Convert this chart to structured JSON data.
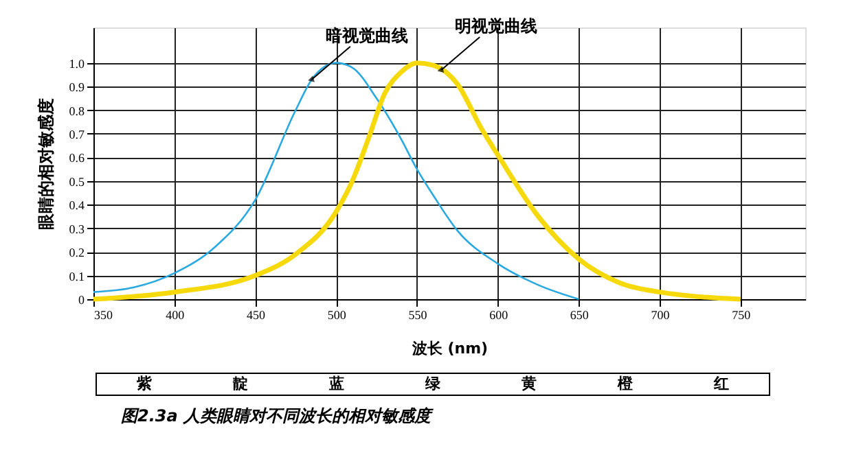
{
  "chart_data": {
    "type": "line",
    "xlabel": "波长 (nm)",
    "ylabel": "眼睛的相对敏感度",
    "xlim": [
      350,
      790
    ],
    "xticks": [
      350,
      400,
      450,
      500,
      550,
      600,
      650,
      700,
      750
    ],
    "ylim": [
      0,
      1.15
    ],
    "yticks": [
      0,
      0.1,
      0.2,
      0.3,
      0.4,
      0.5,
      0.6,
      0.7,
      0.8,
      0.9,
      {
        "value": 1,
        "label": "1.0"
      }
    ],
    "grid": true,
    "marker": "none",
    "line_style": "solid",
    "series": [
      {
        "color": "#29a9e0",
        "x": [
          350,
          375,
          400,
          425,
          450,
          475,
          485,
          500,
          510,
          525,
          540,
          550,
          560,
          575,
          600,
          625,
          650
        ],
        "values": [
          0.03,
          0.05,
          0.11,
          0.22,
          0.42,
          0.8,
          0.93,
          1.0,
          0.98,
          0.85,
          0.68,
          0.55,
          0.44,
          0.29,
          0.15,
          0.06,
          0.0
        ]
      },
      {
        "color": "#f5d90a",
        "x": [
          350,
          400,
          450,
          475,
          500,
          510,
          520,
          530,
          540,
          550,
          560,
          575,
          590,
          600,
          625,
          650,
          675,
          700,
          725,
          750
        ],
        "values": [
          0.0,
          0.03,
          0.1,
          0.19,
          0.37,
          0.5,
          0.68,
          0.87,
          0.96,
          1.0,
          0.99,
          0.91,
          0.72,
          0.61,
          0.35,
          0.17,
          0.07,
          0.03,
          0.01,
          0.0
        ]
      }
    ],
    "annotations": [
      {
        "text": "暗视觉曲线",
        "x": 485,
        "y": 0.93
      },
      {
        "text": "明视觉曲线",
        "x": 565,
        "y": 0.97
      },
      "紫",
      "靛",
      "蓝",
      "绿",
      "黄",
      "橙",
      "红",
      "图2.3a  人类眼睛对不同波长的相对敏感度"
    ]
  }
}
